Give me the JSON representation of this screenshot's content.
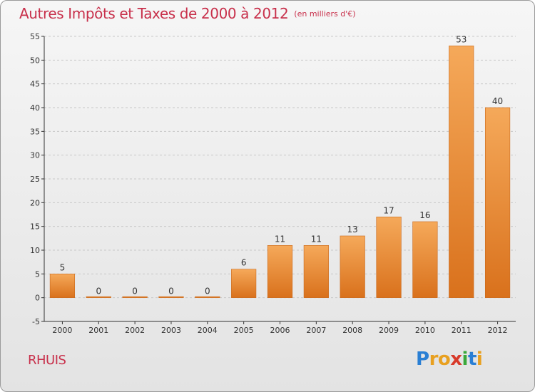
{
  "header": {
    "title": "Autres Impôts et Taxes de 2000 à 2012",
    "unit": "(en milliers d'€)"
  },
  "commune": "RHUIS",
  "logo": {
    "text": "Proxiti",
    "letters": [
      {
        "char": "P",
        "color": "#2a7fd4"
      },
      {
        "char": "r",
        "color": "#e8a020"
      },
      {
        "char": "o",
        "color": "#e8a020"
      },
      {
        "char": "x",
        "color": "#d83a2a"
      },
      {
        "char": "i",
        "color": "#3aa83a"
      },
      {
        "char": "t",
        "color": "#2a7fd4"
      },
      {
        "char": "i",
        "color": "#e8a020"
      }
    ]
  },
  "colors": {
    "title": "#c8304b",
    "bar_top": "#f5a95a",
    "bar_bottom": "#d9711c",
    "grid": "#c8c8c8",
    "axis": "#333333"
  },
  "chart_data": {
    "type": "bar",
    "title": "Autres Impôts et Taxes de 2000 à 2012",
    "subtitle": "(en milliers d'€)",
    "categories": [
      "2000",
      "2001",
      "2002",
      "2003",
      "2004",
      "2005",
      "2006",
      "2007",
      "2008",
      "2009",
      "2010",
      "2011",
      "2012"
    ],
    "values": [
      5,
      0,
      0,
      0,
      0,
      6,
      11,
      11,
      13,
      17,
      16,
      53,
      40
    ],
    "ylim": [
      -5,
      55
    ],
    "yticks": [
      -5,
      0,
      5,
      10,
      15,
      20,
      25,
      30,
      35,
      40,
      45,
      50,
      55
    ],
    "grid": "horizontal dashed",
    "xlabel": "",
    "ylabel": ""
  }
}
